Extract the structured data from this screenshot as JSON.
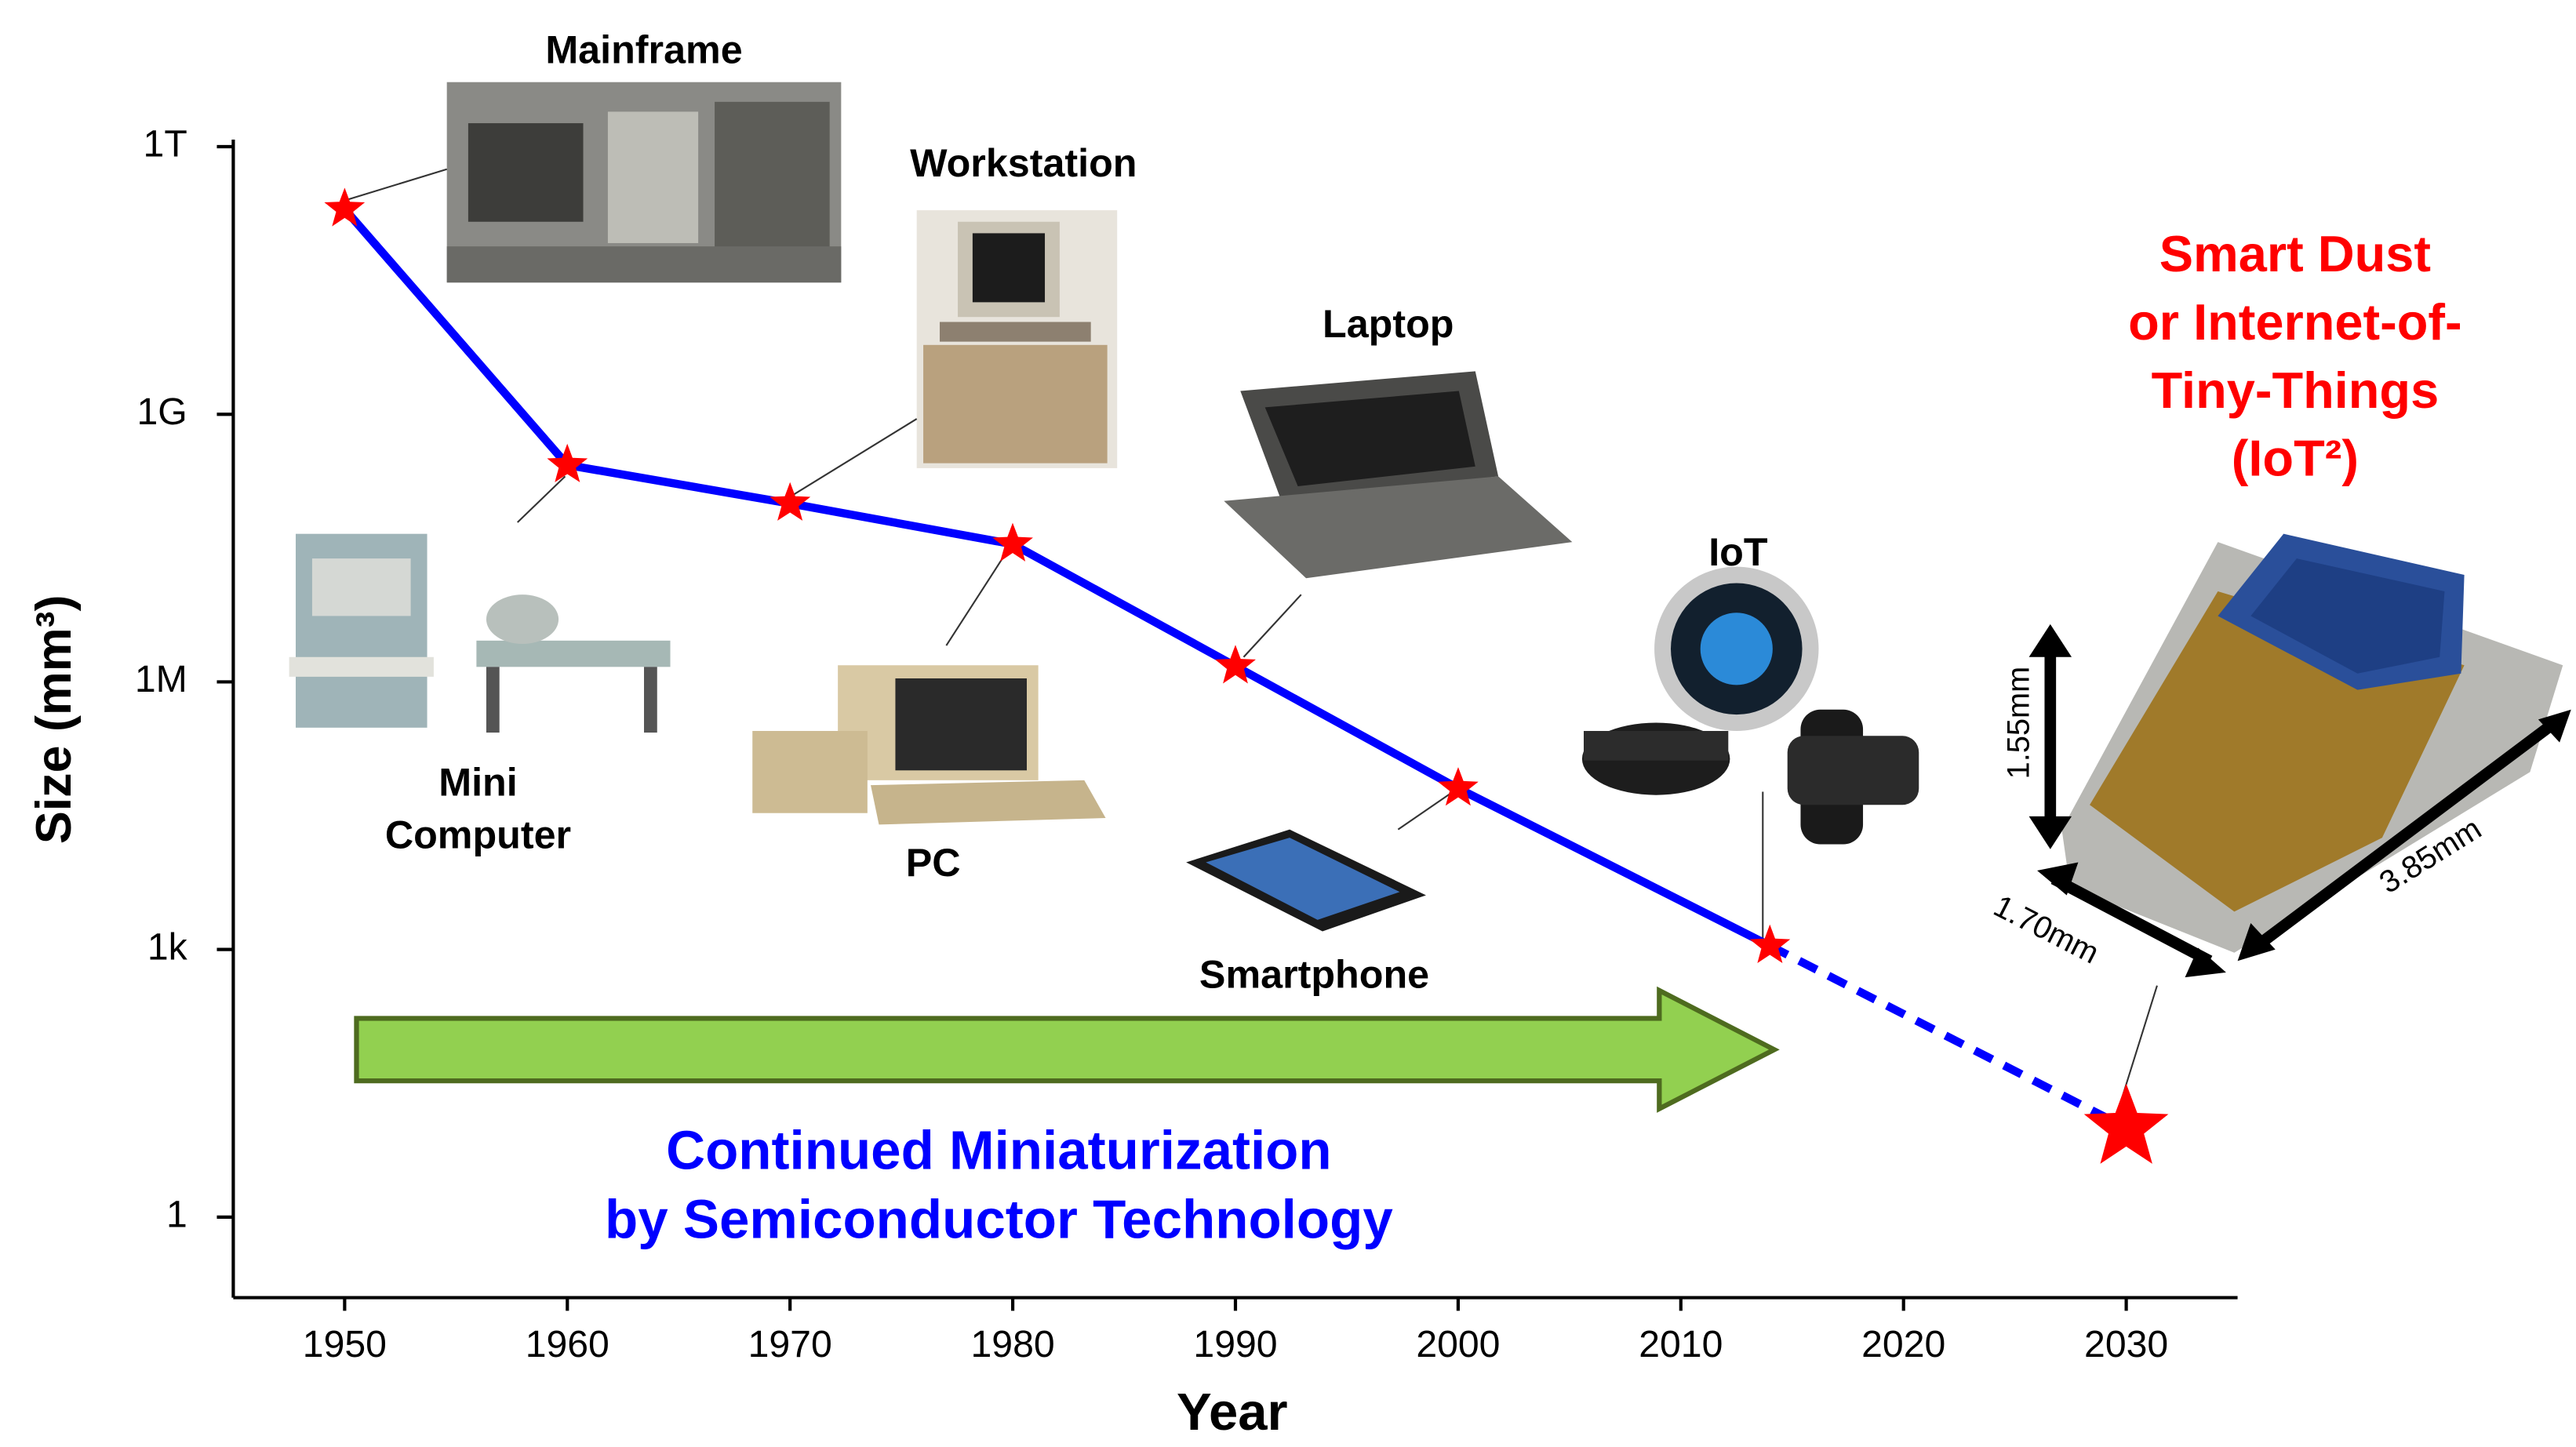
{
  "chart_data": {
    "type": "line",
    "x": [
      1950,
      1960,
      1970,
      1980,
      1990,
      2000,
      2014,
      2030
    ],
    "series": [
      {
        "color": "#0000ff",
        "line_style": "solid",
        "values": [
          200000000000.0,
          270000000.0,
          100000000.0,
          35000000.0,
          1500000.0,
          64000,
          1100,
          null
        ]
      },
      {
        "color": "#0000ff",
        "line_style": "dashed",
        "values": [
          null,
          null,
          null,
          null,
          null,
          null,
          1100,
          10
        ]
      }
    ],
    "marker": "star",
    "marker_color": "#ff0000",
    "xlabel": "Year",
    "ylabel": "Size (mm³)",
    "xlim": [
      1945,
      2035
    ],
    "xticks": [
      1950,
      1960,
      1970,
      1980,
      1990,
      2000,
      2010,
      2020,
      2030
    ],
    "yscale": "log",
    "ylim": [
      0.125,
      1200000000000.0
    ],
    "yticks": [
      1,
      {
        "value": 1000,
        "label": "1k"
      },
      {
        "value": 1000000,
        "label": "1M"
      },
      {
        "value": 1000000000,
        "label": "1G"
      },
      {
        "value": 1000000000000,
        "label": "1T"
      }
    ],
    "annotations": [
      {
        "lines": [
          "Mainframe"
        ],
        "color": "#000000"
      },
      {
        "lines": [
          "Workstation"
        ],
        "color": "#000000"
      },
      {
        "lines": [
          "Laptop"
        ],
        "color": "#000000"
      },
      {
        "lines": [
          "IoT"
        ],
        "color": "#000000"
      },
      {
        "lines": [
          "Mini",
          "Computer"
        ],
        "color": "#000000"
      },
      {
        "lines": [
          "PC"
        ],
        "color": "#000000"
      },
      {
        "lines": [
          "Smartphone"
        ],
        "color": "#000000"
      },
      {
        "lines": [
          "Smart Dust",
          "or Internet-of-",
          "Tiny-Things",
          "(IoT²)"
        ],
        "color": "#ff0000"
      },
      {
        "lines": [
          "Continued Miniaturization",
          "by Semiconductor Technology"
        ],
        "color": "#0000ff"
      },
      {
        "lines": [
          "1.55mm"
        ],
        "color": "#000000"
      },
      {
        "lines": [
          "1.70mm"
        ],
        "color": "#000000"
      },
      {
        "lines": [
          "3.85mm"
        ],
        "color": "#000000"
      }
    ]
  }
}
